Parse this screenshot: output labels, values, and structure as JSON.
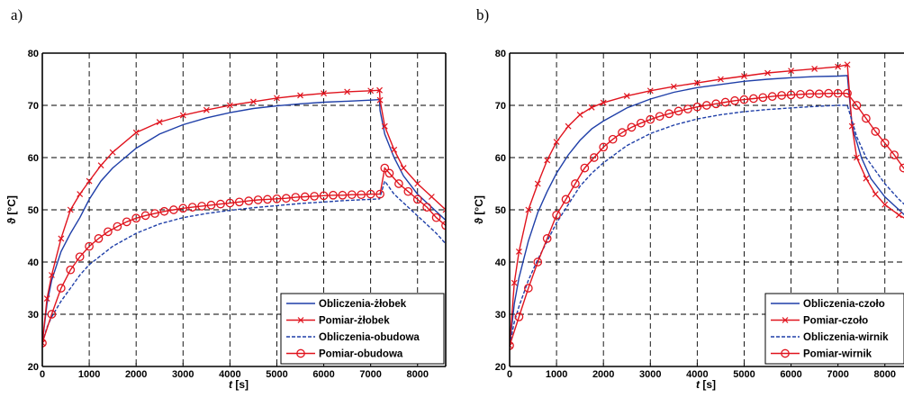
{
  "chart_data": [
    {
      "type": "line",
      "panel_label": "a)",
      "xlabel_italic": "t",
      "xlabel_unit": "[s]",
      "ylabel": "ϑ [°C]",
      "xlim": [
        0,
        8600
      ],
      "ylim": [
        20,
        80
      ],
      "xticks": [
        0,
        1000,
        2000,
        3000,
        4000,
        5000,
        6000,
        7000,
        8000
      ],
      "yticks": [
        20,
        30,
        40,
        50,
        60,
        70,
        80
      ],
      "grid": true,
      "legend_position": "bottom-right",
      "series": [
        {
          "name": "Obliczenia-żłobek",
          "color": "#1f3fa8",
          "style": "solid",
          "marker": "none",
          "x": [
            0,
            100,
            200,
            400,
            600,
            800,
            1000,
            1250,
            1500,
            2000,
            2500,
            3000,
            3500,
            4000,
            4500,
            5000,
            5500,
            6000,
            6500,
            7000,
            7190,
            7200,
            7300,
            7500,
            7700,
            8000,
            8300,
            8600
          ],
          "y": [
            24.5,
            32,
            36.5,
            42,
            45.5,
            48.5,
            52,
            55.5,
            58,
            61.8,
            64.5,
            66.3,
            67.6,
            68.6,
            69.4,
            69.9,
            70.3,
            70.6,
            70.8,
            71,
            71.1,
            69,
            64.5,
            60,
            56.5,
            53,
            50.5,
            48
          ]
        },
        {
          "name": "Pomiar-żłobek",
          "color": "#e0141e",
          "style": "solid",
          "marker": "x",
          "x": [
            0,
            100,
            200,
            400,
            600,
            800,
            1000,
            1250,
            1500,
            2000,
            2500,
            3000,
            3500,
            4000,
            4500,
            5000,
            5500,
            6000,
            6500,
            7000,
            7190,
            7200,
            7300,
            7500,
            7700,
            8000,
            8300,
            8600
          ],
          "y": [
            24.5,
            33,
            37.5,
            44.5,
            50,
            53,
            55.5,
            58.5,
            61,
            64.8,
            66.8,
            68.1,
            69.1,
            70,
            70.7,
            71.4,
            71.9,
            72.3,
            72.6,
            72.8,
            72.9,
            71,
            66,
            61.5,
            58,
            55,
            52.5,
            50
          ]
        },
        {
          "name": "Obliczenia-obudowa",
          "color": "#1f3fa8",
          "style": "dashed",
          "marker": "none",
          "x": [
            0,
            100,
            200,
            400,
            600,
            800,
            1000,
            1500,
            2000,
            2500,
            3000,
            3500,
            4000,
            4500,
            5000,
            5500,
            6000,
            6500,
            7000,
            7190,
            7300,
            7500,
            7800,
            8100,
            8400,
            8600
          ],
          "y": [
            24.5,
            27.5,
            29.5,
            32.5,
            35,
            37.5,
            39.5,
            43,
            45.5,
            47.3,
            48.5,
            49.3,
            49.9,
            50.4,
            50.8,
            51.2,
            51.5,
            51.8,
            52,
            52.1,
            55.5,
            53,
            50.5,
            48,
            45.5,
            43.5
          ]
        },
        {
          "name": "Pomiar-obudowa",
          "color": "#e0141e",
          "style": "solid",
          "marker": "o",
          "x": [
            0,
            200,
            400,
            600,
            800,
            1000,
            1200,
            1400,
            1600,
            1800,
            2000,
            2200,
            2400,
            2600,
            2800,
            3000,
            3200,
            3400,
            3600,
            3800,
            4000,
            4200,
            4400,
            4600,
            4800,
            5000,
            5200,
            5400,
            5600,
            5800,
            6000,
            6200,
            6400,
            6600,
            6800,
            7000,
            7200,
            7300,
            7400,
            7600,
            7800,
            8000,
            8200,
            8400,
            8600
          ],
          "y": [
            24.5,
            30,
            35,
            38.5,
            41,
            43,
            44.5,
            45.8,
            46.8,
            47.7,
            48.4,
            48.9,
            49.3,
            49.7,
            50,
            50.3,
            50.5,
            50.7,
            50.9,
            51.1,
            51.3,
            51.5,
            51.7,
            51.9,
            52,
            52.1,
            52.2,
            52.4,
            52.5,
            52.6,
            52.7,
            52.8,
            52.8,
            52.9,
            52.9,
            53,
            53,
            58,
            57,
            55,
            53.5,
            52,
            50.5,
            48.5,
            47
          ]
        }
      ]
    },
    {
      "type": "line",
      "panel_label": "b)",
      "xlabel_italic": "t",
      "xlabel_unit": "[s]",
      "ylabel": "ϑ [°C]",
      "xlim": [
        0,
        8600
      ],
      "ylim": [
        20,
        80
      ],
      "xticks": [
        0,
        1000,
        2000,
        3000,
        4000,
        5000,
        6000,
        7000,
        8000
      ],
      "yticks": [
        20,
        30,
        40,
        50,
        60,
        70,
        80
      ],
      "grid": true,
      "legend_position": "bottom-right",
      "series": [
        {
          "name": "Obliczenia-czoło",
          "color": "#1f3fa8",
          "style": "solid",
          "marker": "none",
          "x": [
            0,
            100,
            200,
            400,
            600,
            800,
            1000,
            1250,
            1500,
            1750,
            2000,
            2500,
            3000,
            3500,
            4000,
            4500,
            5000,
            5500,
            6000,
            6500,
            7000,
            7200,
            7300,
            7500,
            7700,
            8000,
            8300,
            8600
          ],
          "y": [
            24,
            32,
            37,
            44,
            49.5,
            53.5,
            57,
            60.5,
            63.3,
            65.5,
            67,
            69.5,
            71.2,
            72.5,
            73.4,
            74,
            74.6,
            75,
            75.3,
            75.5,
            75.6,
            75.7,
            66,
            60,
            56,
            52.5,
            50,
            47.5
          ]
        },
        {
          "name": "Pomiar-czoło",
          "color": "#e0141e",
          "style": "solid",
          "marker": "x",
          "x": [
            0,
            100,
            200,
            400,
            600,
            800,
            1000,
            1250,
            1500,
            1750,
            2000,
            2500,
            3000,
            3500,
            4000,
            4500,
            5000,
            5500,
            6000,
            6500,
            7000,
            7200,
            7300,
            7400,
            7600,
            7800,
            8000,
            8300,
            8600
          ],
          "y": [
            24,
            36,
            42,
            50,
            55,
            59.5,
            63,
            66,
            68.2,
            69.6,
            70.5,
            71.8,
            72.8,
            73.6,
            74.3,
            75,
            75.6,
            76.2,
            76.6,
            77,
            77.4,
            77.8,
            66,
            60,
            56,
            53,
            51,
            49,
            47.5
          ]
        },
        {
          "name": "Obliczenia-wirnik",
          "color": "#1f3fa8",
          "style": "dashed",
          "marker": "none",
          "x": [
            0,
            100,
            200,
            400,
            600,
            800,
            1000,
            1250,
            1500,
            1750,
            2000,
            2500,
            3000,
            3500,
            4000,
            4500,
            5000,
            5500,
            6000,
            6500,
            7000,
            7200,
            7400,
            7600,
            7800,
            8000,
            8300,
            8600
          ],
          "y": [
            24,
            28.5,
            31.5,
            36.5,
            40.5,
            44,
            47.5,
            51,
            54.5,
            57,
            59,
            62.3,
            64.6,
            66.2,
            67.4,
            68.2,
            68.8,
            69.2,
            69.5,
            69.8,
            70,
            70,
            64,
            60,
            57.5,
            55,
            52,
            49.5
          ]
        },
        {
          "name": "Pomiar-wirnik",
          "color": "#e0141e",
          "style": "solid",
          "marker": "o",
          "x": [
            0,
            200,
            400,
            600,
            800,
            1000,
            1200,
            1400,
            1600,
            1800,
            2000,
            2200,
            2400,
            2600,
            2800,
            3000,
            3200,
            3400,
            3600,
            3800,
            4000,
            4200,
            4400,
            4600,
            4800,
            5000,
            5200,
            5400,
            5600,
            5800,
            6000,
            6200,
            6400,
            6600,
            6800,
            7000,
            7200,
            7400,
            7600,
            7800,
            8000,
            8200,
            8400,
            8600
          ],
          "y": [
            24,
            29.5,
            35,
            40,
            44.5,
            49,
            52,
            55,
            58,
            60,
            62,
            63.5,
            64.8,
            65.8,
            66.6,
            67.3,
            67.9,
            68.4,
            68.9,
            69.3,
            69.7,
            70,
            70.3,
            70.6,
            70.9,
            71.1,
            71.3,
            71.5,
            71.7,
            71.9,
            72,
            72.1,
            72.2,
            72.2,
            72.3,
            72.3,
            72.3,
            70,
            67.5,
            65,
            62.8,
            60.5,
            58,
            56
          ]
        }
      ]
    }
  ]
}
